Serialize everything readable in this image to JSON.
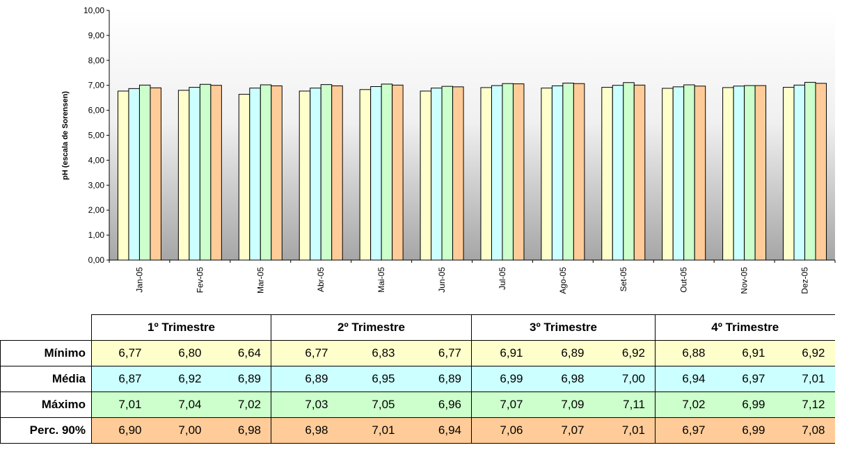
{
  "chart_data": {
    "type": "bar",
    "ylabel": "pH (escala de Sorensen)",
    "ylim": [
      0,
      10
    ],
    "yticks": [
      "0,00",
      "1,00",
      "2,00",
      "3,00",
      "4,00",
      "5,00",
      "6,00",
      "7,00",
      "8,00",
      "9,00",
      "10,00"
    ],
    "categories": [
      "Jan-05",
      "Fev-05",
      "Mar-05",
      "Abr-05",
      "Mai-05",
      "Jun-05",
      "Jul-05",
      "Ago-05",
      "Set-05",
      "Out-05",
      "Nov-05",
      "Dez-05"
    ],
    "series": [
      {
        "values": [
          6.77,
          6.8,
          6.64,
          6.77,
          6.83,
          6.77,
          6.91,
          6.89,
          6.92,
          6.88,
          6.91,
          6.92
        ],
        "color": "#FFFFCC"
      },
      {
        "values": [
          6.87,
          6.92,
          6.89,
          6.89,
          6.95,
          6.89,
          6.99,
          6.98,
          7.0,
          6.94,
          6.97,
          7.01
        ],
        "color": "#CCFFFF"
      },
      {
        "values": [
          7.01,
          7.04,
          7.02,
          7.03,
          7.05,
          6.96,
          7.07,
          7.09,
          7.11,
          7.02,
          6.99,
          7.12
        ],
        "color": "#CCFFCC"
      },
      {
        "values": [
          6.9,
          7.0,
          6.98,
          6.98,
          7.01,
          6.94,
          7.06,
          7.07,
          7.01,
          6.97,
          6.99,
          7.08
        ],
        "color": "#FFCC99"
      }
    ],
    "grid": false
  },
  "table": {
    "quarters": [
      "1º Trimestre",
      "2º Trimestre",
      "3º Trimestre",
      "4º Trimestre"
    ],
    "rows": [
      {
        "label": "Mínimo",
        "values": [
          "6,77",
          "6,80",
          "6,64",
          "6,77",
          "6,83",
          "6,77",
          "6,91",
          "6,89",
          "6,92",
          "6,88",
          "6,91",
          "6,92"
        ]
      },
      {
        "label": "Média",
        "values": [
          "6,87",
          "6,92",
          "6,89",
          "6,89",
          "6,95",
          "6,89",
          "6,99",
          "6,98",
          "7,00",
          "6,94",
          "6,97",
          "7,01"
        ]
      },
      {
        "label": "Máximo",
        "values": [
          "7,01",
          "7,04",
          "7,02",
          "7,03",
          "7,05",
          "6,96",
          "7,07",
          "7,09",
          "7,11",
          "7,02",
          "6,99",
          "7,12"
        ]
      },
      {
        "label": "Perc. 90%",
        "values": [
          "6,90",
          "7,00",
          "6,98",
          "6,98",
          "7,01",
          "6,94",
          "7,06",
          "7,07",
          "7,01",
          "6,97",
          "6,99",
          "7,08"
        ]
      }
    ]
  }
}
